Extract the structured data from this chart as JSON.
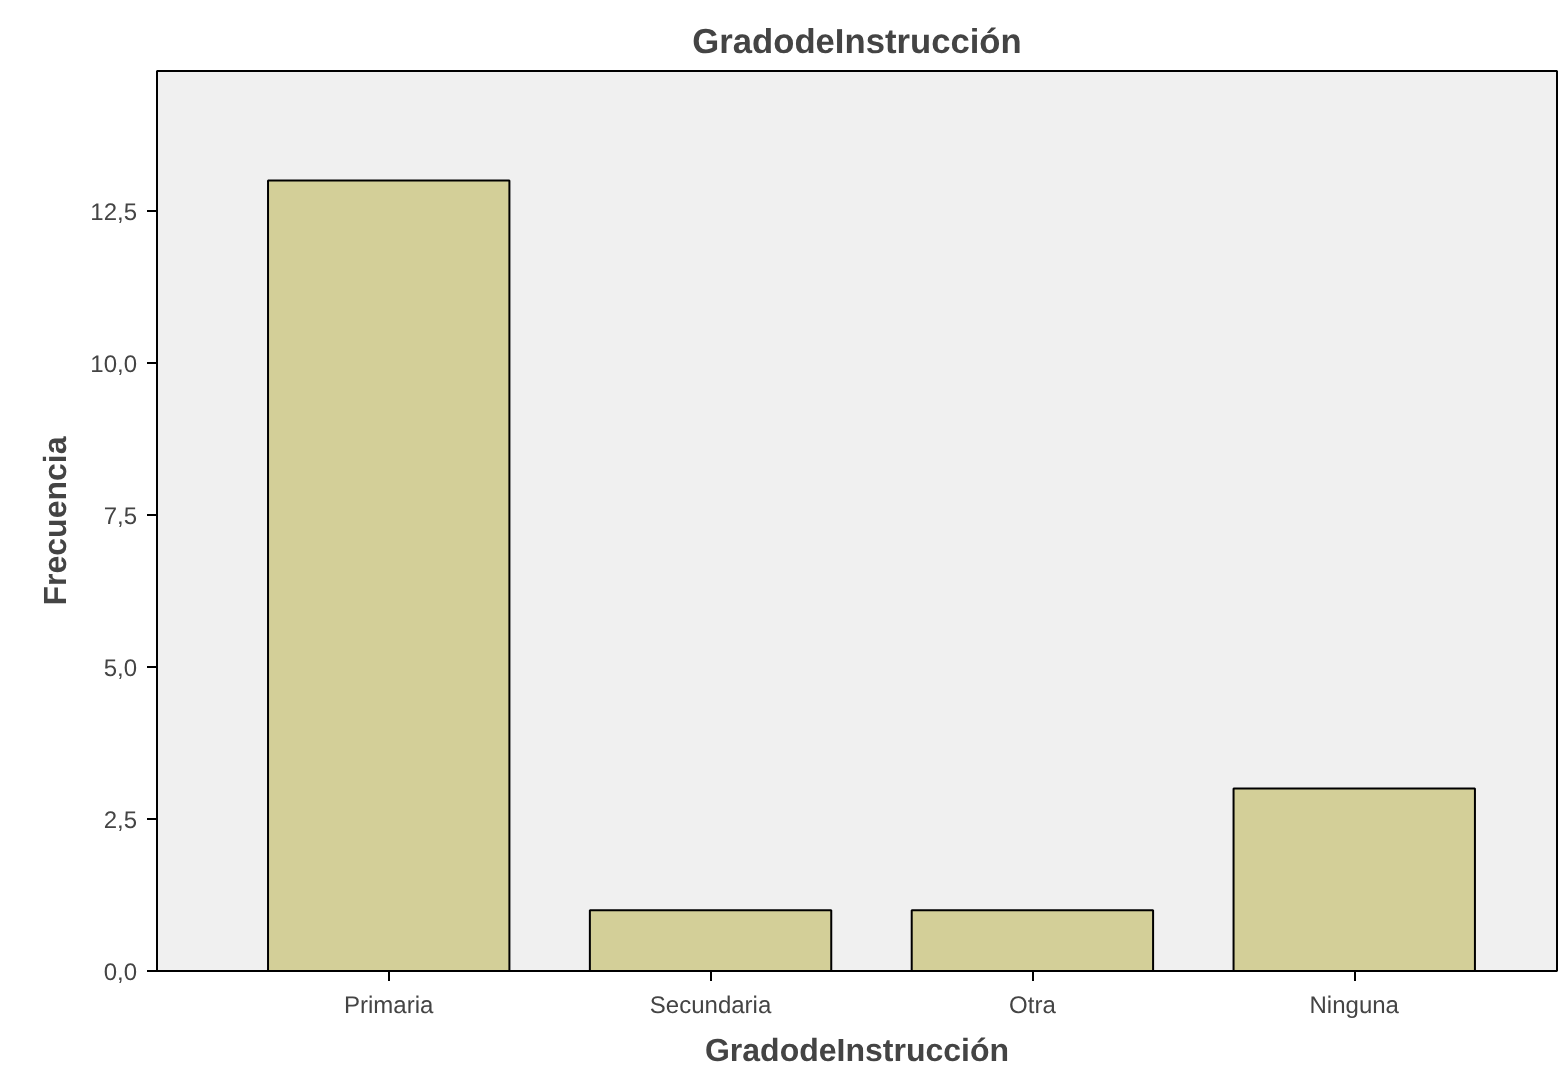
{
  "chart_data": {
    "type": "bar",
    "title": "GradodeInstrucción",
    "xlabel": "GradodeInstrucción",
    "ylabel": "Frecuencia",
    "categories": [
      "Primaria",
      "Secundaria",
      "Otra",
      "Ninguna"
    ],
    "values": [
      13,
      1,
      1,
      3
    ],
    "color": "#d3cf98",
    "ylim": [
      0,
      14.8
    ],
    "yticks": [
      {
        "value": 0,
        "label": "0,0"
      },
      {
        "value": 2.5,
        "label": "2,5"
      },
      {
        "value": 5,
        "label": "5,0"
      },
      {
        "value": 7.5,
        "label": "7,5"
      },
      {
        "value": 10,
        "label": "10,0"
      },
      {
        "value": 12.5,
        "label": "12,5"
      }
    ],
    "grid": false
  }
}
